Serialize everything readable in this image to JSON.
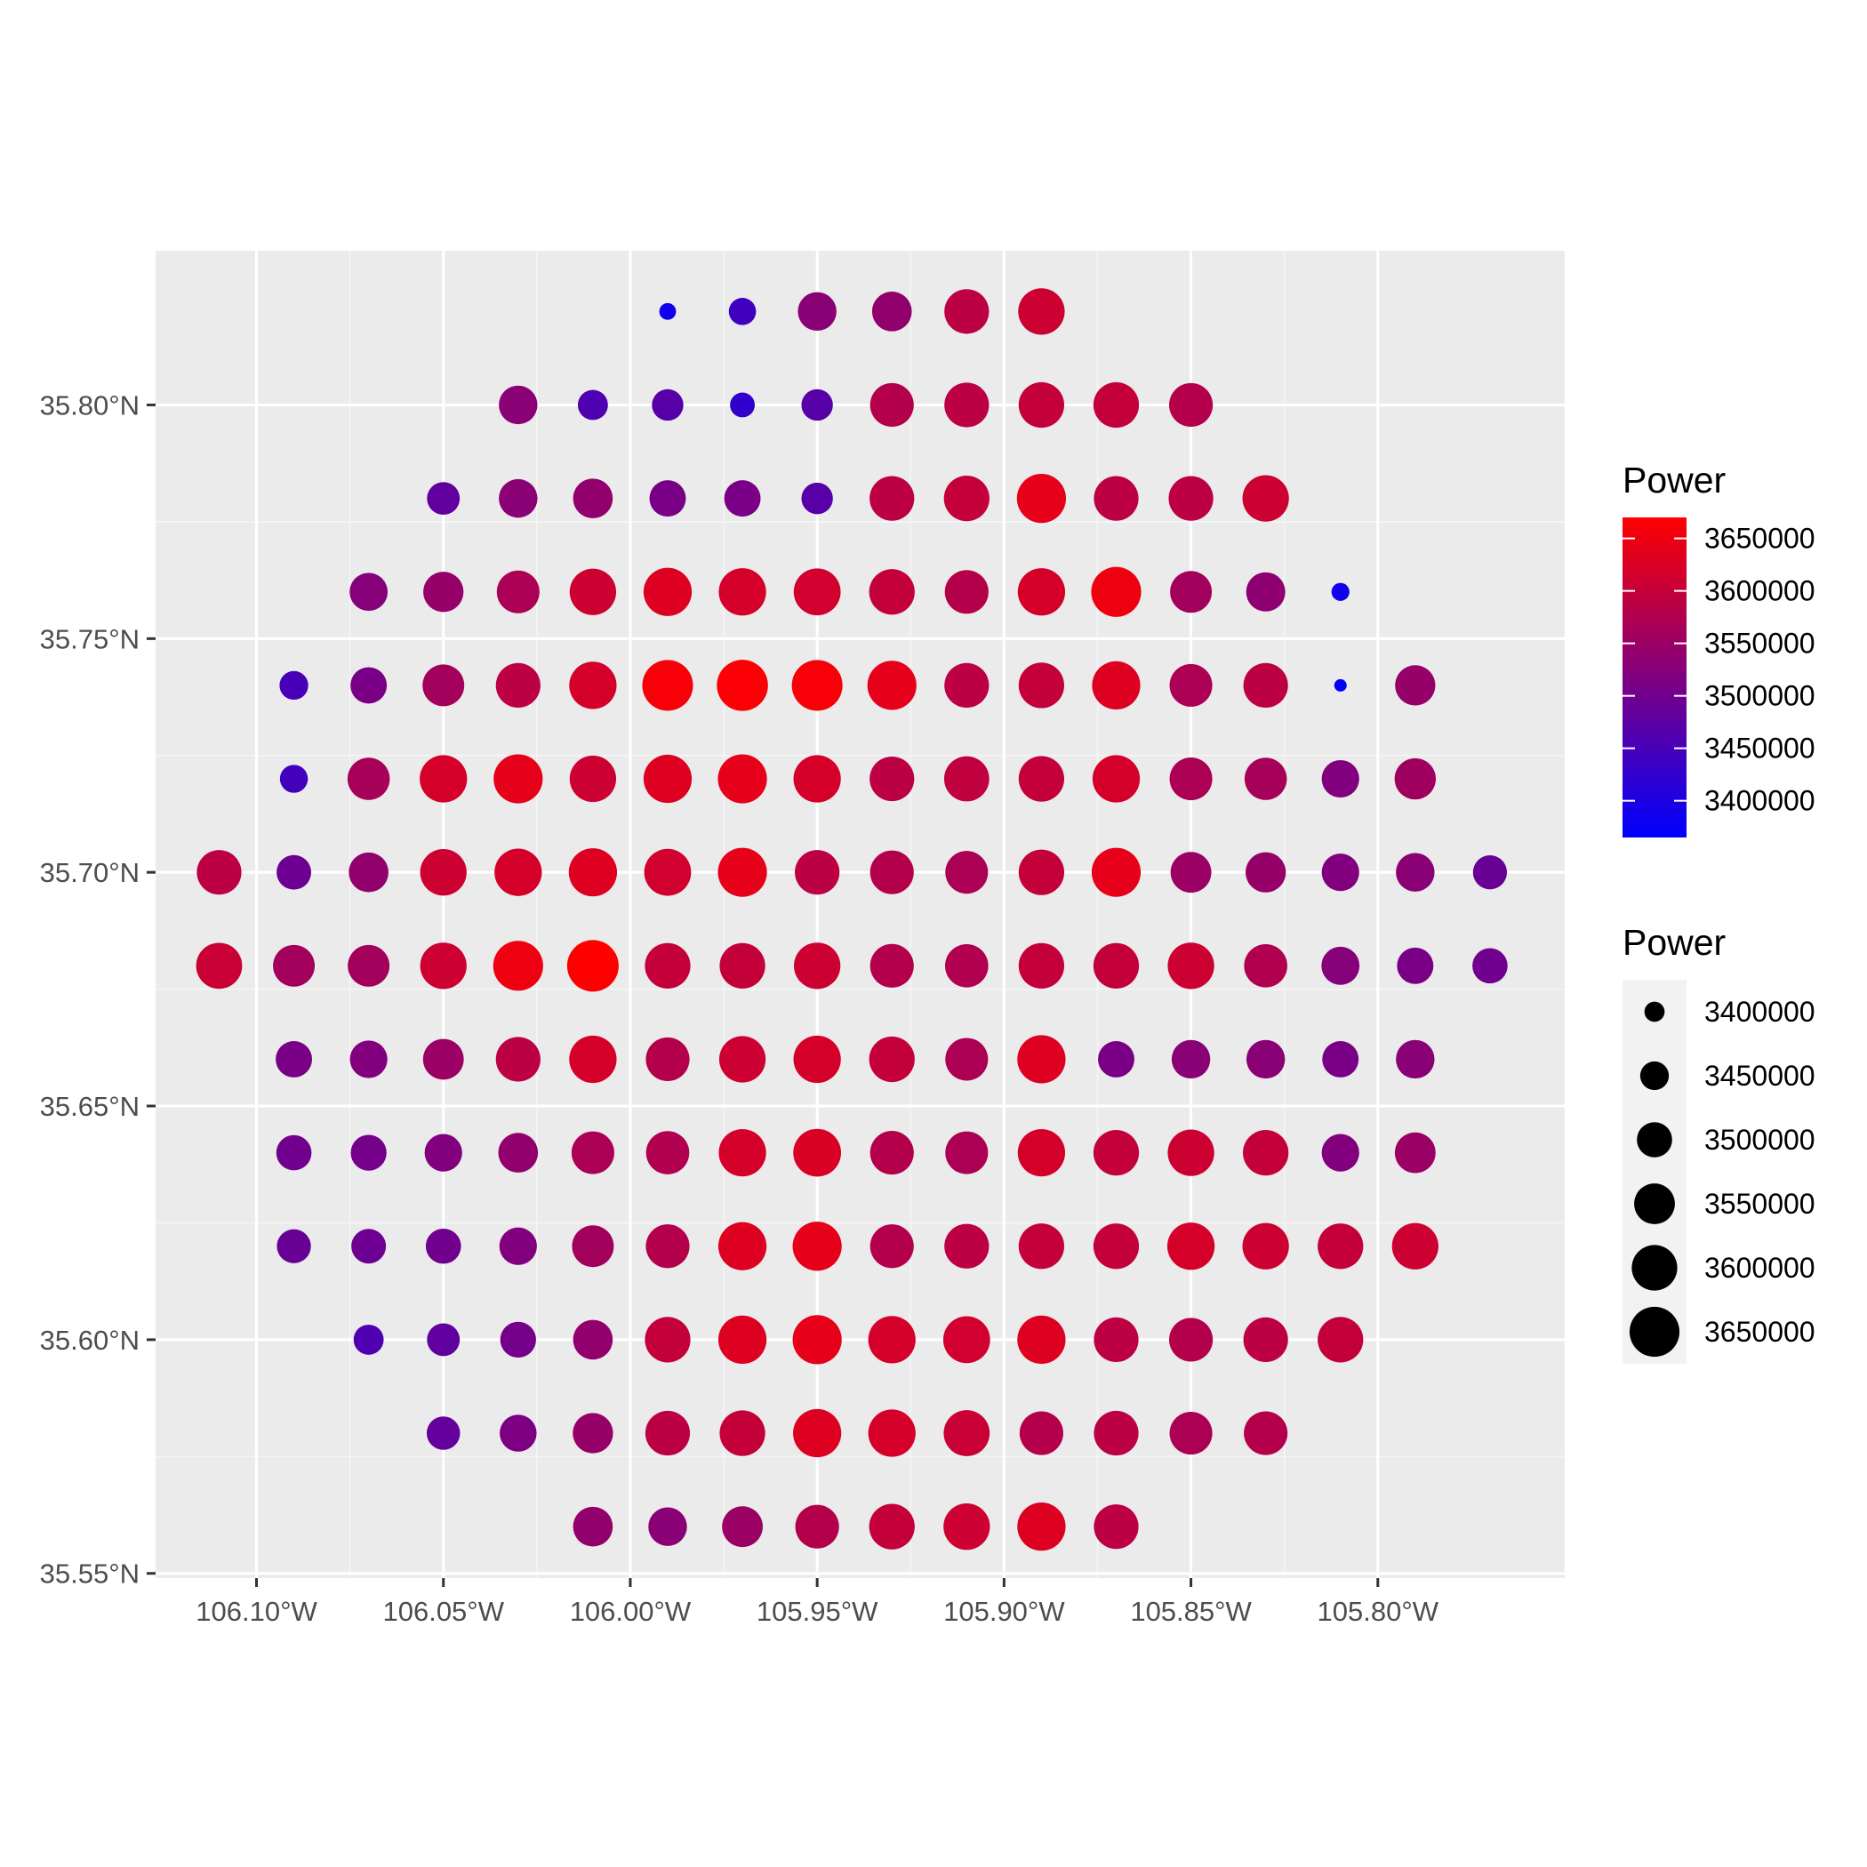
{
  "chart_data": {
    "type": "scatter",
    "title": "",
    "xlabel": "",
    "ylabel": "",
    "xlim": [
      -106.127,
      -105.75
    ],
    "ylim": [
      35.549,
      35.833
    ],
    "x_ticks": [
      {
        "value": -106.1,
        "label": "106.10°W"
      },
      {
        "value": -106.05,
        "label": "106.05°W"
      },
      {
        "value": -106.0,
        "label": "106.00°W"
      },
      {
        "value": -105.95,
        "label": "105.95°W"
      },
      {
        "value": -105.9,
        "label": "105.90°W"
      },
      {
        "value": -105.85,
        "label": "105.85°W"
      },
      {
        "value": -105.8,
        "label": "105.80°W"
      }
    ],
    "y_ticks": [
      {
        "value": 35.55,
        "label": "35.55°N"
      },
      {
        "value": 35.6,
        "label": "35.60°N"
      },
      {
        "value": 35.65,
        "label": "35.65°N"
      },
      {
        "value": 35.7,
        "label": "35.70°N"
      },
      {
        "value": 35.75,
        "label": "35.75°N"
      },
      {
        "value": 35.8,
        "label": "35.80°N"
      }
    ],
    "grid": true,
    "background": "#ebebeb",
    "color_scale": {
      "low": "#0000ff",
      "high": "#ff0000",
      "min": 3365000,
      "max": 3670000
    },
    "size_scale": {
      "min": 3365000,
      "max": 3670000
    },
    "legend_color": {
      "title": "Power",
      "position": "right",
      "breaks": [
        {
          "value": 3650000,
          "label": "3650000"
        },
        {
          "value": 3600000,
          "label": "3600000"
        },
        {
          "value": 3550000,
          "label": "3550000"
        },
        {
          "value": 3500000,
          "label": "3500000"
        },
        {
          "value": 3450000,
          "label": "3450000"
        },
        {
          "value": 3400000,
          "label": "3400000"
        }
      ]
    },
    "legend_size": {
      "title": "Power",
      "position": "right",
      "breaks": [
        {
          "value": 3400000,
          "label": "3400000"
        },
        {
          "value": 3450000,
          "label": "3450000"
        },
        {
          "value": 3500000,
          "label": "3500000"
        },
        {
          "value": 3550000,
          "label": "3550000"
        },
        {
          "value": 3600000,
          "label": "3600000"
        },
        {
          "value": 3650000,
          "label": "3650000"
        }
      ]
    },
    "rows": [
      {
        "lat": 35.82,
        "start_lon": -105.99,
        "power": [
          3385000,
          3440000,
          3530000,
          3540000,
          3590000,
          3610000
        ]
      },
      {
        "lat": 35.8,
        "start_lon": -106.03,
        "power": [
          3530000,
          3460000,
          3470000,
          3425000,
          3470000,
          3580000,
          3590000,
          3600000,
          3600000,
          3580000
        ]
      },
      {
        "lat": 35.78,
        "start_lon": -106.05,
        "power": [
          3480000,
          3530000,
          3540000,
          3510000,
          3510000,
          3470000,
          3590000,
          3600000,
          3640000,
          3590000,
          3590000,
          3610000
        ]
      },
      {
        "lat": 35.76,
        "start_lon": -106.07,
        "power": [
          3525000,
          3545000,
          3570000,
          3610000,
          3630000,
          3620000,
          3615000,
          3600000,
          3580000,
          3620000,
          3650000,
          3560000,
          3535000,
          3390000
        ]
      },
      {
        "lat": 35.74,
        "start_lon": -106.09,
        "power": [
          3450000,
          3510000,
          3560000,
          3590000,
          3620000,
          3660000,
          3665000,
          3660000,
          3640000,
          3590000,
          3600000,
          3630000,
          3570000,
          3590000,
          3370000,
          3545000
        ]
      },
      {
        "lat": 35.72,
        "start_lon": -106.09,
        "power": [
          3445000,
          3565000,
          3620000,
          3640000,
          3610000,
          3630000,
          3640000,
          3620000,
          3590000,
          3595000,
          3600000,
          3620000,
          3570000,
          3565000,
          3520000,
          3555000
        ]
      },
      {
        "lat": 35.7,
        "start_lon": -106.11,
        "power": [
          3590000,
          3495000,
          3540000,
          3610000,
          3620000,
          3630000,
          3615000,
          3640000,
          3590000,
          3580000,
          3570000,
          3600000,
          3640000,
          3550000,
          3545000,
          3520000,
          3530000,
          3490000
        ]
      },
      {
        "lat": 35.68,
        "start_lon": -106.11,
        "power": [
          3605000,
          3560000,
          3560000,
          3610000,
          3650000,
          3670000,
          3600000,
          3600000,
          3610000,
          3580000,
          3575000,
          3600000,
          3600000,
          3610000,
          3575000,
          3525000,
          3510000,
          3500000
        ]
      },
      {
        "lat": 35.66,
        "start_lon": -106.09,
        "power": [
          3510000,
          3520000,
          3550000,
          3590000,
          3620000,
          3580000,
          3610000,
          3620000,
          3600000,
          3570000,
          3630000,
          3510000,
          3530000,
          3530000,
          3510000,
          3530000
        ]
      },
      {
        "lat": 35.64,
        "start_lon": -106.09,
        "power": [
          3500000,
          3505000,
          3520000,
          3540000,
          3570000,
          3575000,
          3620000,
          3625000,
          3580000,
          3570000,
          3620000,
          3600000,
          3610000,
          3600000,
          3520000,
          3550000
        ]
      },
      {
        "lat": 35.62,
        "start_lon": -106.09,
        "power": [
          3490000,
          3495000,
          3500000,
          3520000,
          3560000,
          3580000,
          3630000,
          3640000,
          3580000,
          3590000,
          3600000,
          3600000,
          3620000,
          3610000,
          3600000,
          3610000
        ]
      },
      {
        "lat": 35.6,
        "start_lon": -106.07,
        "power": [
          3460000,
          3480000,
          3505000,
          3540000,
          3600000,
          3630000,
          3640000,
          3620000,
          3615000,
          3630000,
          3590000,
          3580000,
          3590000,
          3600000
        ]
      },
      {
        "lat": 35.58,
        "start_lon": -106.05,
        "power": [
          3485000,
          3515000,
          3545000,
          3590000,
          3600000,
          3630000,
          3620000,
          3605000,
          3580000,
          3590000,
          3570000,
          3580000
        ]
      },
      {
        "lat": 35.56,
        "start_lon": -106.01,
        "power": [
          3540000,
          3530000,
          3550000,
          3580000,
          3600000,
          3610000,
          3630000,
          3590000
        ]
      }
    ]
  }
}
